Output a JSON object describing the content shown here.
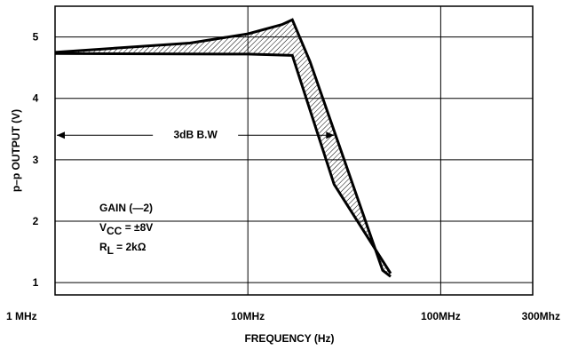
{
  "chart_data": {
    "type": "line",
    "title": "",
    "xlabel": "FREQUENCY (Hz)",
    "ylabel": "p–p OUTPUT (V)",
    "x_scale": "log",
    "xlim": [
      1,
      300
    ],
    "ylim": [
      0.8,
      5.5
    ],
    "grid": true,
    "x_ticks": [
      {
        "value": 1,
        "label": "1 MHz"
      },
      {
        "value": 10,
        "label": "10MHz"
      },
      {
        "value": 100,
        "label": "100MHz"
      },
      {
        "value": 300,
        "label": "300Mhz"
      }
    ],
    "y_ticks": [
      {
        "value": 1,
        "label": "1"
      },
      {
        "value": 2,
        "label": "2"
      },
      {
        "value": 3,
        "label": "3"
      },
      {
        "value": 4,
        "label": "4"
      },
      {
        "value": 5,
        "label": "5"
      }
    ],
    "series": [
      {
        "x": [
          1,
          5,
          10,
          15,
          17,
          21,
          50,
          55
        ],
        "y": [
          4.75,
          4.9,
          5.05,
          5.2,
          5.28,
          4.6,
          1.2,
          1.1
        ]
      },
      {
        "x": [
          1,
          10,
          17,
          28,
          55
        ],
        "y": [
          4.73,
          4.72,
          4.7,
          2.6,
          1.15
        ]
      }
    ],
    "bandwidth_arrow": {
      "label": "3dB B.W",
      "from": 1,
      "to": 28,
      "y": 3.4
    },
    "annotation": {
      "gain": "GAIN (—2)",
      "vcc_main": "V",
      "vcc_sub": "CC",
      "vcc_value": " = ±8V",
      "rl_main": "R",
      "rl_sub": "L",
      "rl_value": " = 2kΩ"
    }
  }
}
